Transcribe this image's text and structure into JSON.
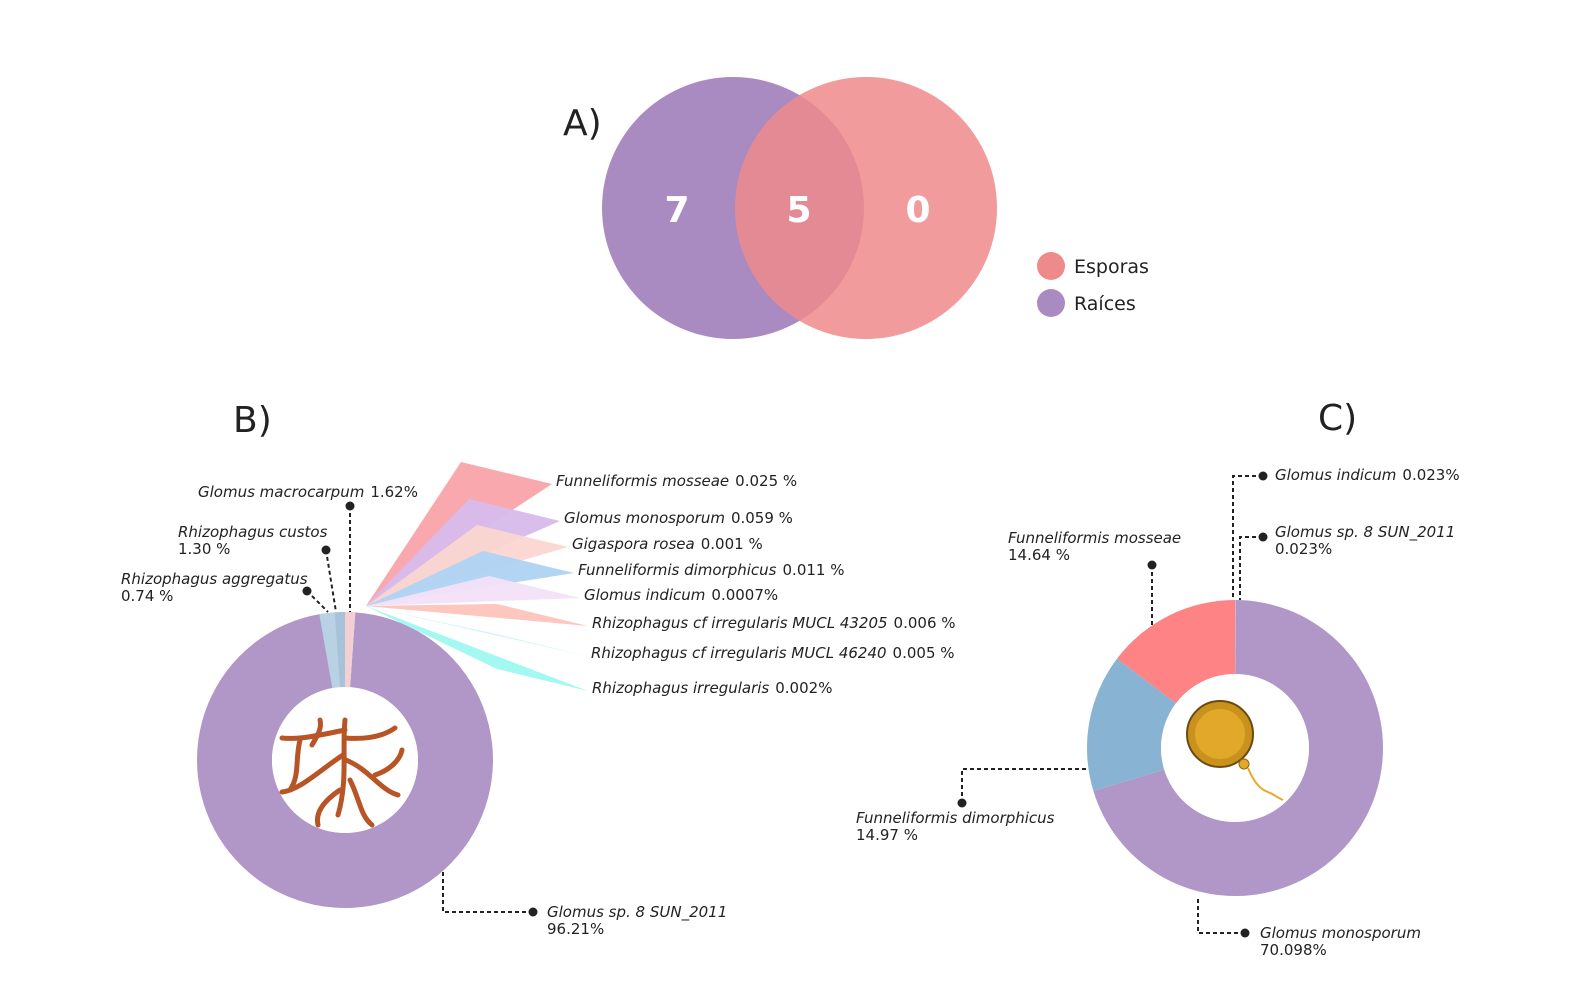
{
  "chart_data": [
    {
      "type": "venn",
      "title": "A)",
      "series": [
        {
          "name": "Esporas",
          "color": "#ee8a8c",
          "only": 0
        },
        {
          "name": "Raíces",
          "color": "#a98bc2",
          "only": 7
        }
      ],
      "intersection": 5
    },
    {
      "type": "donut",
      "title": "B)",
      "categories": [
        "Glomus sp. 8 SUN_2011",
        "Funneliformis mosseae",
        "Glomus monosporum",
        "Gigaspora rosea",
        "Funneliformis dimorphicus",
        "Glomus indicum",
        "Rhizophagus cf irregularis MUCL 43205",
        "Rhizophagus cf irregularis MUCL 46240",
        "Rhizophagus irregularis",
        "Glomus macrocarpum",
        "Rhizophagus custos",
        "Rhizophagus aggregatus"
      ],
      "values": [
        96.21,
        0.025,
        0.059,
        0.001,
        0.011,
        0.0007,
        0.006,
        0.005,
        0.002,
        1.62,
        1.3,
        0.74
      ],
      "value_labels": [
        "96.21%",
        "0.025 %",
        "0.059 %",
        "0.001 %",
        "0.011 %",
        "0.0007%",
        "0.006 %",
        "0.005 %",
        "0.002%",
        "1.62%",
        "1.30 %",
        "0.74 %"
      ],
      "colors": [
        "#b097c8",
        "#f9a4a9",
        "#d7bbeb",
        "#fbd6d1",
        "#aed3f3",
        "#f3e2f8",
        "#fdc3ba",
        "#c9f4f6",
        "#9ff8f1",
        "#f4cfd3",
        "#bcd5e6",
        "#a6c3da"
      ]
    },
    {
      "type": "donut",
      "title": "C)",
      "categories": [
        "Glomus indicum",
        "Glomus sp. 8 SUN_2011",
        "Glomus monosporum",
        "Funneliformis dimorphicus",
        "Funneliformis mosseae"
      ],
      "values": [
        0.023,
        0.023,
        70.098,
        14.97,
        14.64
      ],
      "value_labels": [
        "0.023%",
        "0.023%",
        "70.098%",
        "14.97 %",
        "14.64 %"
      ],
      "colors": [
        "#f6d0d4",
        "#f6d0d4",
        "#b097c8",
        "#89b3d3",
        "#fd8384"
      ]
    }
  ]
}
